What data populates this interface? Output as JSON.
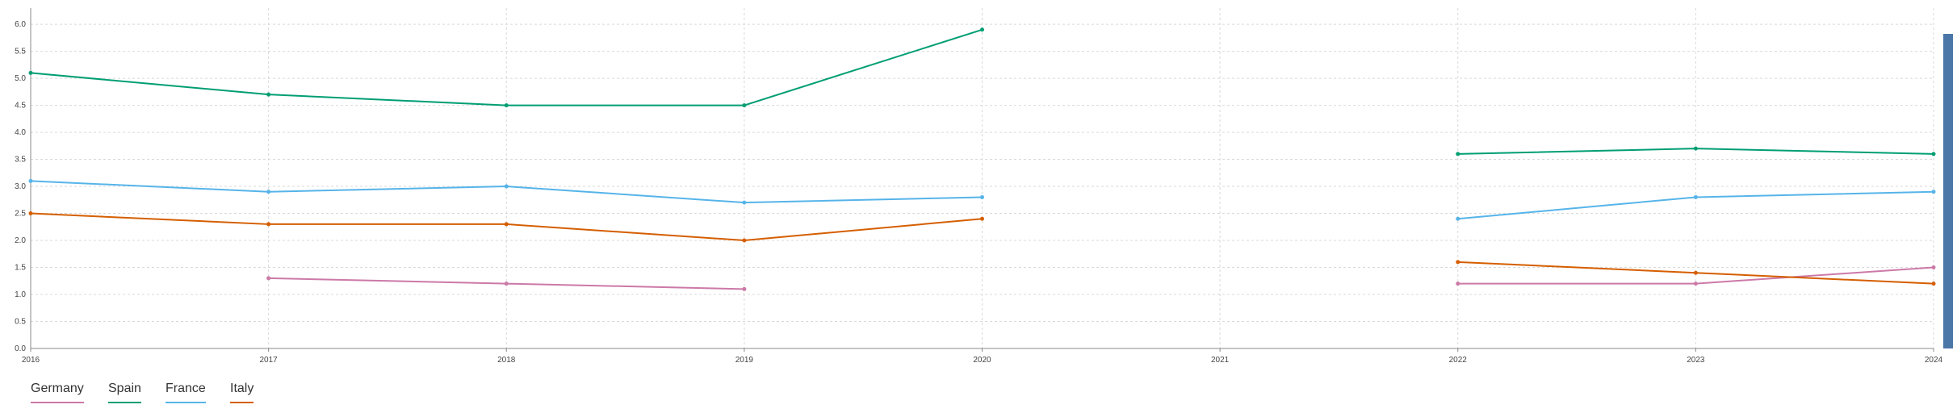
{
  "chart_data": {
    "type": "line",
    "x": [
      "2016",
      "2017",
      "2018",
      "2019",
      "2020",
      "2021",
      "2022",
      "2023",
      "2024"
    ],
    "ylim": [
      0,
      6.3
    ],
    "yticks": [
      "0.0",
      "0.5",
      "1.0",
      "1.5",
      "2.0",
      "2.5",
      "3.0",
      "3.5",
      "4.0",
      "4.5",
      "5.0",
      "5.5",
      "6.0"
    ],
    "grid": true,
    "legend_position": "bottom-left",
    "series": [
      {
        "name": "Germany",
        "color": "#cc79a7",
        "values": [
          null,
          1.3,
          1.2,
          1.1,
          null,
          null,
          1.2,
          1.2,
          1.5
        ]
      },
      {
        "name": "Spain",
        "color": "#009e73",
        "values": [
          5.1,
          4.7,
          4.5,
          4.5,
          5.9,
          null,
          3.6,
          3.7,
          3.6
        ]
      },
      {
        "name": "France",
        "color": "#56b4e9",
        "values": [
          3.1,
          2.9,
          3.0,
          2.7,
          2.8,
          null,
          2.4,
          2.8,
          2.9
        ]
      },
      {
        "name": "Italy",
        "color": "#d55e00",
        "values": [
          2.5,
          2.3,
          2.3,
          2.0,
          2.4,
          null,
          1.6,
          1.4,
          1.2
        ]
      }
    ]
  }
}
